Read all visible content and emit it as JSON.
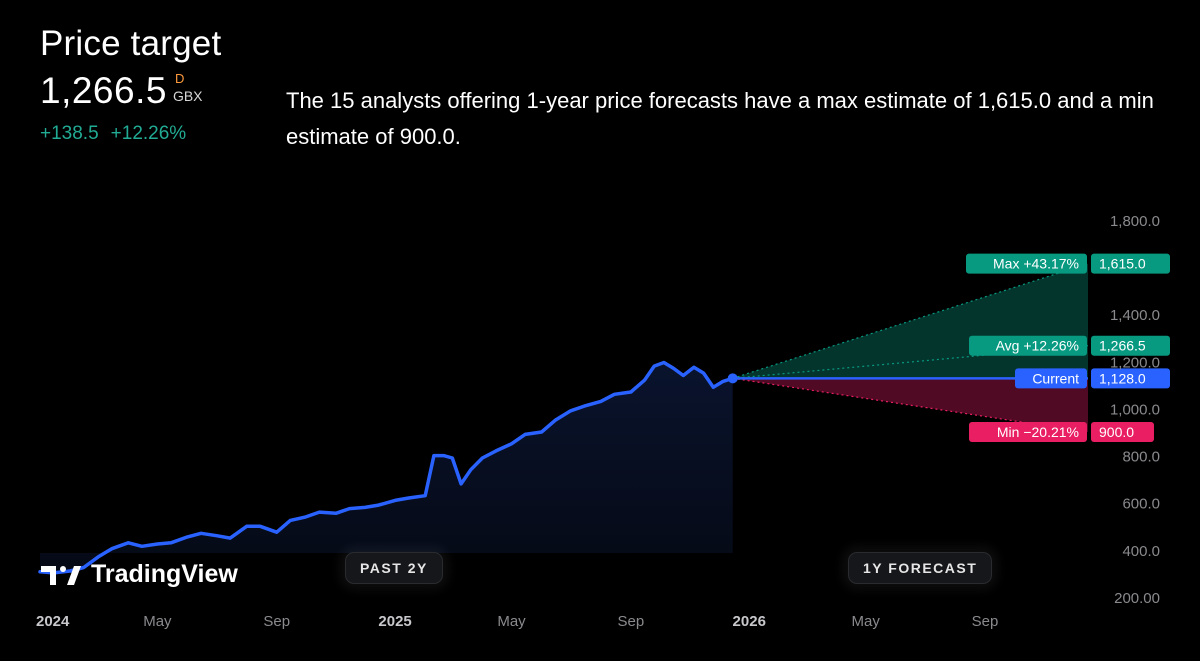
{
  "header": {
    "title": "Price target",
    "price": "1,266.5",
    "flag": "D",
    "currency": "GBX",
    "change_abs": "+138.5",
    "change_pct": "+12.26%",
    "description": "The 15 analysts offering 1-year price forecasts have a max estimate of 1,615.0 and a min estimate of 900.0."
  },
  "buttons": {
    "past": "PAST 2Y",
    "forecast": "1Y FORECAST"
  },
  "brand": {
    "name": "TradingView"
  },
  "colors": {
    "line": "#2962ff",
    "max": "#089981",
    "avg": "#089981",
    "min": "#e91e63",
    "current": "#2962ff",
    "positive_text": "#22ab94"
  },
  "chart_data": {
    "type": "line",
    "title": "Price target",
    "x_tick_labels": [
      {
        "label": "2024",
        "date": "2024-01-01",
        "bold": true
      },
      {
        "label": "May",
        "date": "2024-05-01",
        "bold": false
      },
      {
        "label": "Sep",
        "date": "2024-09-01",
        "bold": false
      },
      {
        "label": "2025",
        "date": "2025-01-01",
        "bold": true
      },
      {
        "label": "May",
        "date": "2025-05-01",
        "bold": false
      },
      {
        "label": "Sep",
        "date": "2025-09-01",
        "bold": false
      },
      {
        "label": "2026",
        "date": "2026-01-01",
        "bold": true
      },
      {
        "label": "May",
        "date": "2026-05-01",
        "bold": false
      },
      {
        "label": "Sep",
        "date": "2026-09-01",
        "bold": false
      }
    ],
    "y_tick_labels": [
      "1,800.0",
      "1,400.0",
      "1,200.0",
      "1,000.0",
      "800.0",
      "600.0",
      "400.0",
      "200.00"
    ],
    "y_ticks": [
      1800,
      1400,
      1200,
      1000,
      800,
      600,
      400,
      200
    ],
    "ylim": [
      200,
      1800
    ],
    "grid": false,
    "series": [
      {
        "name": "Price",
        "dates": [
          "2024-01-01",
          "2024-01-15",
          "2024-02-01",
          "2024-02-15",
          "2024-03-01",
          "2024-03-15",
          "2024-04-01",
          "2024-04-15",
          "2024-05-01",
          "2024-05-15",
          "2024-06-01",
          "2024-06-15",
          "2024-07-01",
          "2024-07-15",
          "2024-08-01",
          "2024-08-15",
          "2024-09-01",
          "2024-09-15",
          "2024-10-01",
          "2024-10-15",
          "2024-11-01",
          "2024-11-15",
          "2024-12-01",
          "2024-12-15",
          "2025-01-01",
          "2025-01-15",
          "2025-02-01",
          "2025-02-10",
          "2025-02-20",
          "2025-03-01",
          "2025-03-10",
          "2025-03-20",
          "2025-04-01",
          "2025-04-15",
          "2025-05-01",
          "2025-05-15",
          "2025-06-01",
          "2025-06-15",
          "2025-07-01",
          "2025-07-15",
          "2025-08-01",
          "2025-08-15",
          "2025-09-01",
          "2025-09-15",
          "2025-09-25",
          "2025-10-05",
          "2025-10-15",
          "2025-10-25",
          "2025-11-05",
          "2025-11-15",
          "2025-11-25",
          "2025-12-05",
          "2025-12-15"
        ],
        "values": [
          307,
          302,
          310,
          325,
          370,
          405,
          430,
          415,
          425,
          430,
          455,
          470,
          460,
          450,
          500,
          500,
          475,
          525,
          540,
          560,
          555,
          575,
          580,
          590,
          610,
          620,
          630,
          800,
          800,
          790,
          680,
          740,
          790,
          820,
          850,
          890,
          900,
          950,
          990,
          1010,
          1030,
          1060,
          1070,
          1120,
          1180,
          1195,
          1170,
          1140,
          1175,
          1150,
          1090,
          1115,
          1128
        ]
      }
    ],
    "forecast": {
      "current": {
        "label": "Current",
        "value": 1128.0,
        "value_label": "1,128.0",
        "date": "2025-12-15"
      },
      "max": {
        "label": "Max +43.17%",
        "value": 1615.0,
        "value_label": "1,615.0"
      },
      "avg": {
        "label": "Avg +12.26%",
        "value": 1266.5,
        "value_label": "1,266.5"
      },
      "min": {
        "label": "Min −20.21%",
        "value": 900.0,
        "value_label": "900.0"
      },
      "target_date": "2026-12-15"
    }
  }
}
